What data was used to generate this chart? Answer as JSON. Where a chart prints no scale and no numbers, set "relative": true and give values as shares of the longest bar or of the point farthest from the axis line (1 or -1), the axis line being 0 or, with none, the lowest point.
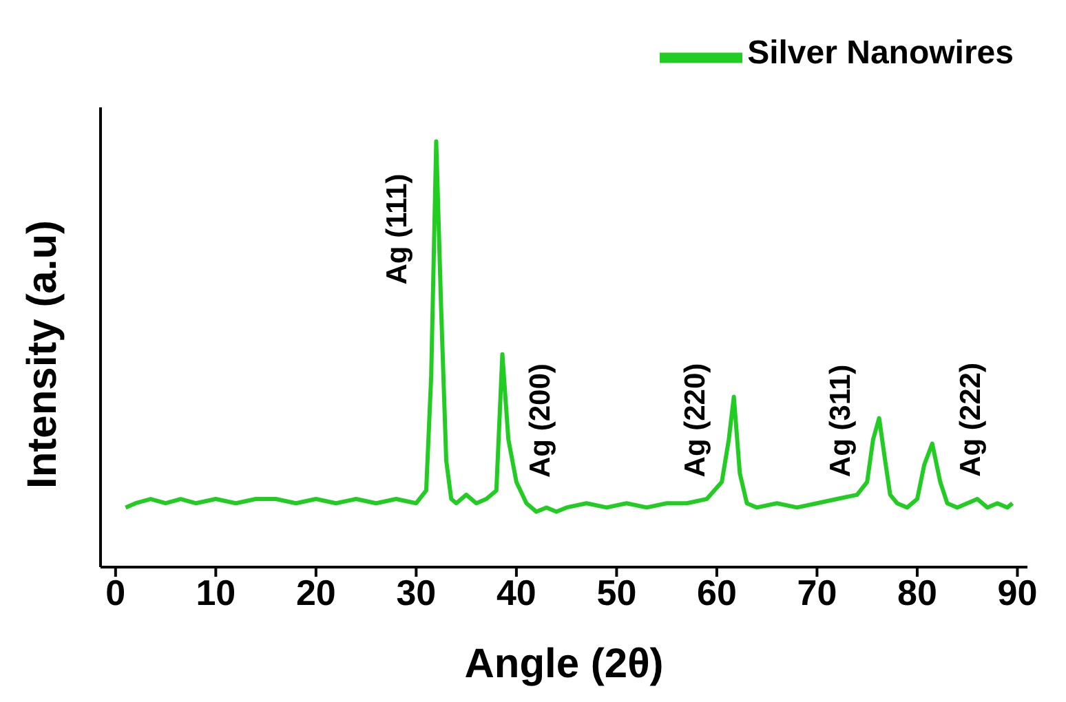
{
  "chart_data": {
    "type": "line",
    "relative": true,
    "xlabel": "Angle (2θ)",
    "ylabel": "Intensity (a.u)",
    "xlim": [
      -1.5,
      91
    ],
    "xticks": [
      0,
      10,
      20,
      30,
      40,
      50,
      60,
      70,
      80,
      90
    ],
    "legend": "top right",
    "grid": false,
    "marker": "none",
    "line_style": "solid",
    "x": [
      1,
      2,
      3.5,
      5,
      6.5,
      8,
      10,
      12,
      14,
      16,
      18,
      20,
      22,
      24,
      26,
      28,
      30,
      31,
      31.5,
      32,
      32.5,
      33,
      33.5,
      34,
      35,
      36,
      37,
      38,
      38.6,
      39.2,
      40,
      41,
      42,
      43,
      44,
      45,
      47,
      49,
      51,
      53,
      55,
      57,
      59,
      60.5,
      61.2,
      61.7,
      62.3,
      63,
      64,
      66,
      68,
      70,
      72,
      74,
      75,
      75.6,
      76.2,
      76.8,
      77.3,
      78,
      79,
      80,
      80.7,
      81.5,
      82.3,
      83,
      84,
      85,
      86,
      87,
      88,
      89,
      89.5
    ],
    "series": [
      {
        "name": "Silver Nanowires",
        "color": "#22cc22",
        "values": [
          0.14,
          0.15,
          0.16,
          0.15,
          0.16,
          0.15,
          0.16,
          0.15,
          0.16,
          0.16,
          0.15,
          0.16,
          0.15,
          0.16,
          0.15,
          0.16,
          0.15,
          0.18,
          0.45,
          1.0,
          0.6,
          0.25,
          0.16,
          0.15,
          0.17,
          0.15,
          0.16,
          0.18,
          0.5,
          0.3,
          0.2,
          0.15,
          0.13,
          0.14,
          0.13,
          0.14,
          0.15,
          0.14,
          0.15,
          0.14,
          0.15,
          0.15,
          0.16,
          0.2,
          0.3,
          0.4,
          0.22,
          0.15,
          0.14,
          0.15,
          0.14,
          0.15,
          0.16,
          0.17,
          0.2,
          0.3,
          0.35,
          0.25,
          0.17,
          0.15,
          0.14,
          0.16,
          0.24,
          0.29,
          0.2,
          0.15,
          0.14,
          0.15,
          0.16,
          0.14,
          0.15,
          0.14,
          0.15
        ]
      }
    ],
    "annotations": [
      {
        "text": "Ag (111)",
        "x": 32,
        "y": 1.0
      },
      {
        "text": "Ag (200)",
        "x": 38.6,
        "y": 0.5
      },
      {
        "text": "Ag (220)",
        "x": 61.7,
        "y": 0.4
      },
      {
        "text": "Ag (311)",
        "x": 76.2,
        "y": 0.35
      },
      {
        "text": "Ag (222)",
        "x": 81.5,
        "y": 0.29
      }
    ]
  }
}
